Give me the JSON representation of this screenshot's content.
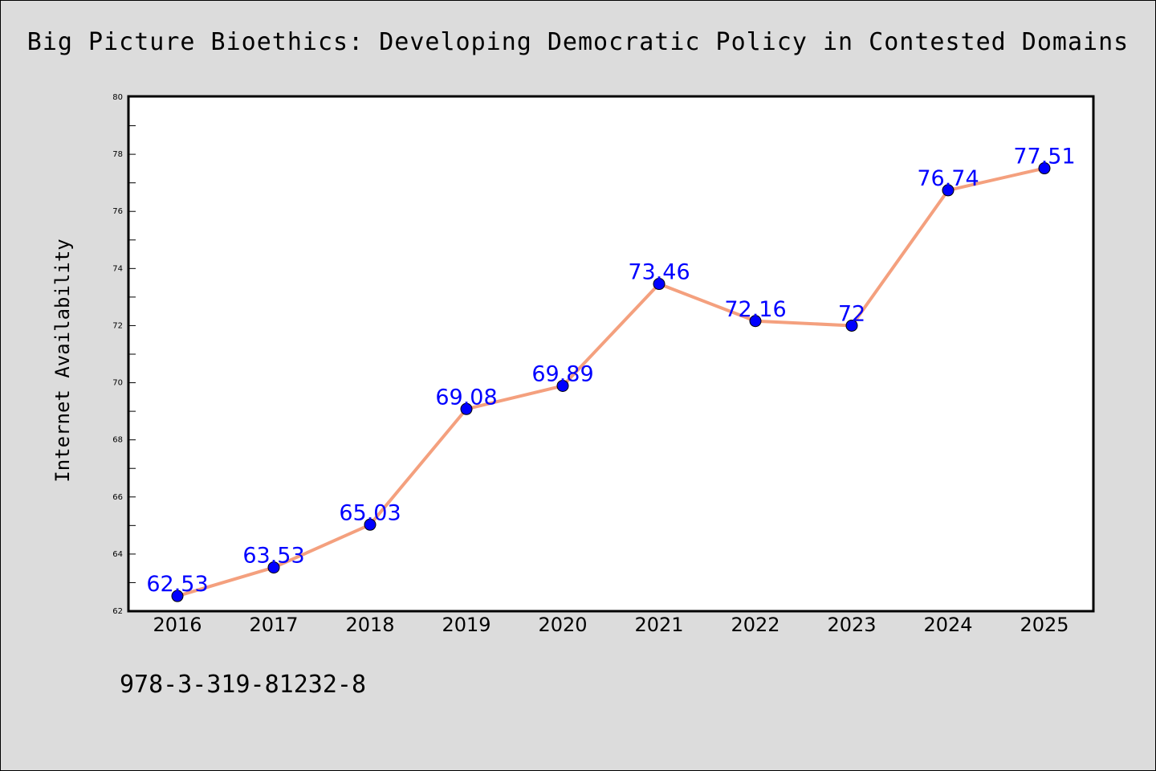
{
  "title": "Big Picture Bioethics: Developing Democratic Policy in Contested Domains",
  "footer_text": "978-3-319-81232-8",
  "chart_data": {
    "type": "line",
    "title": "Big Picture Bioethics: Developing Democratic Policy in Contested Domains",
    "xlabel": "",
    "ylabel": "Internet Availability",
    "categories": [
      "2016",
      "2017",
      "2018",
      "2019",
      "2020",
      "2021",
      "2022",
      "2023",
      "2024",
      "2025"
    ],
    "values": [
      62.53,
      63.53,
      65.03,
      69.08,
      69.89,
      73.46,
      72.16,
      72,
      76.74,
      77.51
    ],
    "data_labels": [
      "62.53",
      "63.53",
      "65.03",
      "69.08",
      "69.89",
      "73.46",
      "72.16",
      "72",
      "76.74",
      "77.51"
    ],
    "ylim": [
      62,
      80
    ],
    "yticks": [
      62,
      64,
      66,
      68,
      70,
      72,
      74,
      76,
      78,
      80
    ],
    "grid": false,
    "legend": "none",
    "colors": {
      "line": "#f4a07e",
      "marker": "#0000ff",
      "label": "#0000ff",
      "background": "#dcdcdc",
      "plot_background": "#ffffff"
    }
  }
}
